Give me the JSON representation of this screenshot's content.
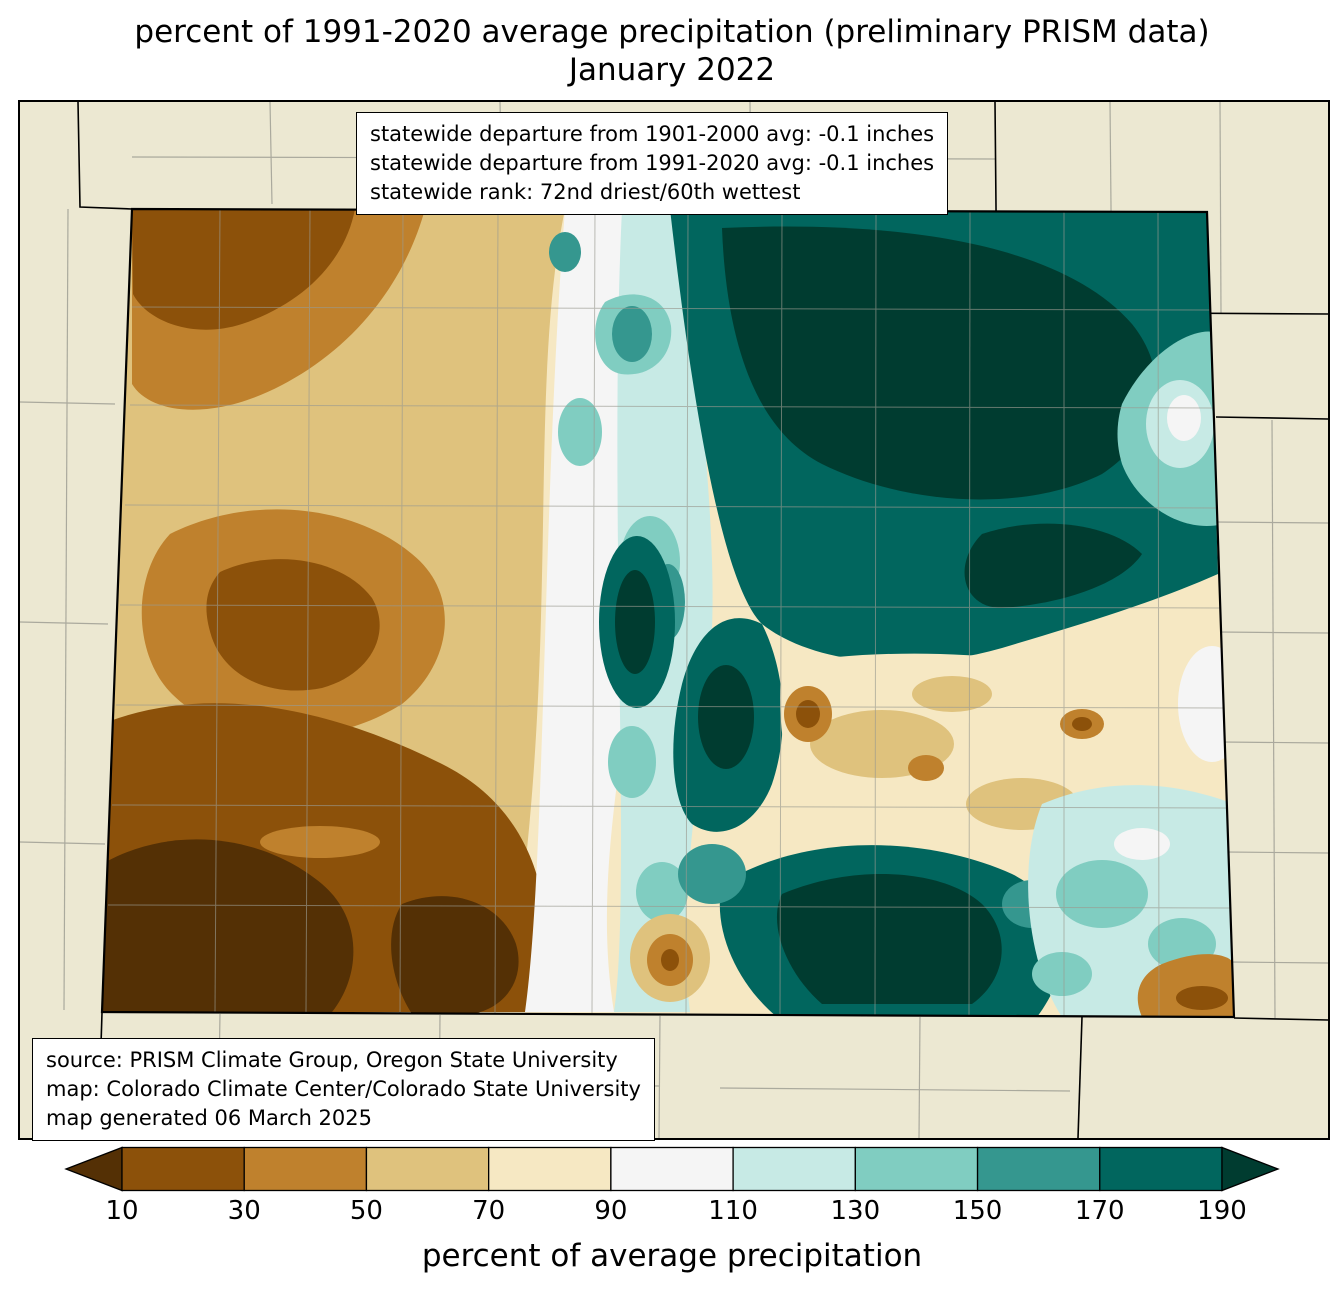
{
  "title": {
    "line1": "percent of 1991-2020 average precipitation (preliminary PRISM data)",
    "line2": "January 2022"
  },
  "stats_box": {
    "lines": [
      "statewide departure from 1901-2000 avg: -0.1 inches",
      "statewide departure from 1991-2020 avg: -0.1 inches",
      "statewide rank: 72nd driest/60th wettest"
    ]
  },
  "source_box": {
    "lines": [
      "source: PRISM Climate Group, Oregon State University",
      "map: Colorado Climate Center/Colorado State University",
      "map generated 06 March 2025"
    ]
  },
  "colorbar": {
    "caption": "percent of average precipitation",
    "tick_labels": [
      "10",
      "30",
      "50",
      "70",
      "90",
      "110",
      "130",
      "150",
      "170",
      "190"
    ],
    "under_color": "#543005",
    "bin_colors": [
      "#8c510a",
      "#bf812d",
      "#dfc27d",
      "#f6e8c3",
      "#f5f5f5",
      "#c7eae5",
      "#80cdc1",
      "#35978f",
      "#01665e"
    ],
    "over_color": "#003c30"
  },
  "map": {
    "surround_color": "#ece8d2",
    "county_line_color": "#9a9a90",
    "state_line_color": "#000000"
  }
}
